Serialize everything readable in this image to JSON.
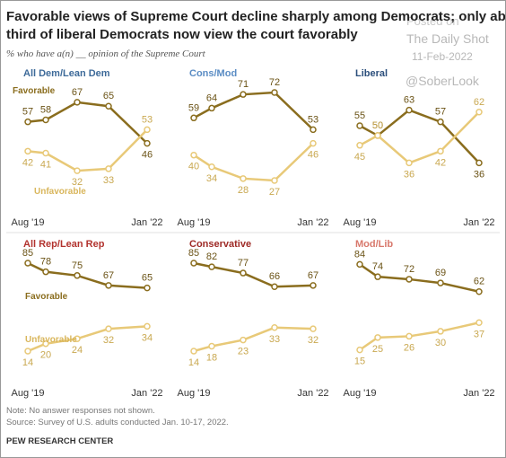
{
  "title": [
    "Favorable views of Supreme Court decline sharply among Democrats; only about a",
    "third of liberal Democrats now view the court favorably"
  ],
  "subtitle": "% who have a(n) __ opinion of the Supreme Court",
  "watermark": [
    "Posted on",
    "The Daily Shot",
    "11-Feb-2022",
    "@SoberLook"
  ],
  "note": "Note: No answer responses not shown.",
  "source": "Source: Survey of U.S. adults conducted Jan. 10-17, 2022.",
  "credit": "PEW RESEARCH CENTER",
  "chart_data": [
    {
      "type": "line",
      "title": "All Dem/Lean Dem",
      "title_color": "#3d6a99",
      "categories": [
        "Aug '19",
        null,
        null,
        null,
        "Jan '22"
      ],
      "series": [
        {
          "name": "Favorable",
          "color": "#8a6d1e",
          "values": [
            57,
            58,
            67,
            65,
            46
          ]
        },
        {
          "name": "Unfavorable",
          "color": "#e8c978",
          "values": [
            42,
            41,
            32,
            33,
            53
          ]
        }
      ]
    },
    {
      "type": "line",
      "title": "Cons/Mod",
      "title_color": "#5a8cc4",
      "categories": [
        "Aug '19",
        null,
        null,
        null,
        "Jan '22"
      ],
      "series": [
        {
          "color": "#8a6d1e",
          "values": [
            59,
            64,
            71,
            72,
            53
          ]
        },
        {
          "color": "#e8c978",
          "values": [
            40,
            34,
            28,
            27,
            46
          ]
        }
      ]
    },
    {
      "type": "line",
      "title": "Liberal",
      "title_color": "#2c4f7c",
      "categories": [
        "Aug '19",
        null,
        null,
        null,
        "Jan '22"
      ],
      "series": [
        {
          "color": "#8a6d1e",
          "values": [
            55,
            50,
            63,
            57,
            36
          ]
        },
        {
          "color": "#e8c978",
          "values": [
            45,
            50,
            36,
            42,
            62
          ]
        }
      ]
    },
    {
      "type": "line",
      "title": "All Rep/Lean Rep",
      "title_color": "#b2332e",
      "categories": [
        "Aug '19",
        null,
        null,
        null,
        "Jan '22"
      ],
      "series": [
        {
          "name": "Favorable",
          "color": "#8a6d1e",
          "values": [
            85,
            78,
            75,
            67,
            65
          ]
        },
        {
          "name": "Unfavorable",
          "color": "#e8c978",
          "values": [
            14,
            20,
            24,
            32,
            34
          ]
        }
      ]
    },
    {
      "type": "line",
      "title": "Conservative",
      "title_color": "#9e2a26",
      "categories": [
        "Aug '19",
        null,
        null,
        null,
        "Jan '22"
      ],
      "series": [
        {
          "color": "#8a6d1e",
          "values": [
            85,
            82,
            77,
            66,
            67
          ]
        },
        {
          "color": "#e8c978",
          "values": [
            14,
            18,
            23,
            33,
            32
          ]
        }
      ]
    },
    {
      "type": "line",
      "title": "Mod/Lib",
      "title_color": "#d8786c",
      "categories": [
        "Aug '19",
        null,
        null,
        null,
        "Jan '22"
      ],
      "series": [
        {
          "color": "#8a6d1e",
          "values": [
            84,
            74,
            72,
            69,
            62
          ]
        },
        {
          "color": "#e8c978",
          "values": [
            15,
            25,
            26,
            30,
            37
          ]
        }
      ]
    }
  ]
}
